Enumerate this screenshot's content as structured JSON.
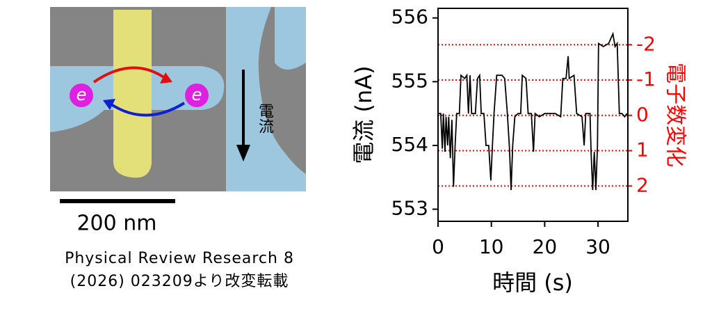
{
  "image": {
    "electron": "e",
    "current_label": "電流",
    "scale_bar": "200 nm",
    "citation": [
      "Physical Review Research 8",
      "(2026) 023209より改変転載"
    ]
  },
  "chart_data": {
    "type": "line",
    "ylabel": "電流 (nA)",
    "y2label": "電子数変化",
    "xlabel": "時間 (s)",
    "color": "#000000",
    "y2color": "#ff0000",
    "xlim": [
      0,
      35.6
    ],
    "xticks": [
      0,
      10,
      20,
      30
    ],
    "ylim": [
      552.81,
      556.15
    ],
    "yticks": [
      553,
      554,
      555,
      556
    ],
    "y2lim": [
      3.0,
      -3.03
    ],
    "y2ticks": [
      -2,
      -1,
      0,
      1,
      2
    ],
    "y2grid": true,
    "x": [
      0,
      0.5,
      0.8,
      1.0,
      1.3,
      1.5,
      1.8,
      2.0,
      2.3,
      2.6,
      2.9,
      3.2,
      3.5,
      4.0,
      4.3,
      5.0,
      5.4,
      5.7,
      6.0,
      6.3,
      7.0,
      7.4,
      7.8,
      8.1,
      8.6,
      9.0,
      9.5,
      9.9,
      10.2,
      10.5,
      11.0,
      12.0,
      12.5,
      13.0,
      13.4,
      13.7,
      14.0,
      14.4,
      15.0,
      15.5,
      15.8,
      16.5,
      16.9,
      17.5,
      17.9,
      18.2,
      19.0,
      20.0,
      21.0,
      22.0,
      23.0,
      23.4,
      24.0,
      24.4,
      24.6,
      25.5,
      26.0,
      27.0,
      27.4,
      27.7,
      28.5,
      28.7,
      29.0,
      29.3,
      29.6,
      29.9,
      30.1,
      31.0,
      32.0,
      32.8,
      33.2,
      33.6,
      34.0,
      34.5,
      35.0,
      35.4
    ],
    "values": [
      554.5,
      554.5,
      553.95,
      554.5,
      553.9,
      554.45,
      554.0,
      554.45,
      553.8,
      554.4,
      553.35,
      554.0,
      554.5,
      554.5,
      555.1,
      555.05,
      555.1,
      554.5,
      555.1,
      554.5,
      554.5,
      555.05,
      555.1,
      554.5,
      554.5,
      554.0,
      554.0,
      553.45,
      554.0,
      554.5,
      555.1,
      555.1,
      555.05,
      554.5,
      553.95,
      553.3,
      554.0,
      554.45,
      554.5,
      554.5,
      555.1,
      555.05,
      554.5,
      554.5,
      553.9,
      554.5,
      554.45,
      554.5,
      554.5,
      554.5,
      554.45,
      555.05,
      555.05,
      555.4,
      555.05,
      555.1,
      554.5,
      554.45,
      554.0,
      554.5,
      554.5,
      553.9,
      553.3,
      553.9,
      553.3,
      554.0,
      555.6,
      555.55,
      555.6,
      555.75,
      555.55,
      555.6,
      554.5,
      554.5,
      554.45,
      554.5
    ]
  }
}
